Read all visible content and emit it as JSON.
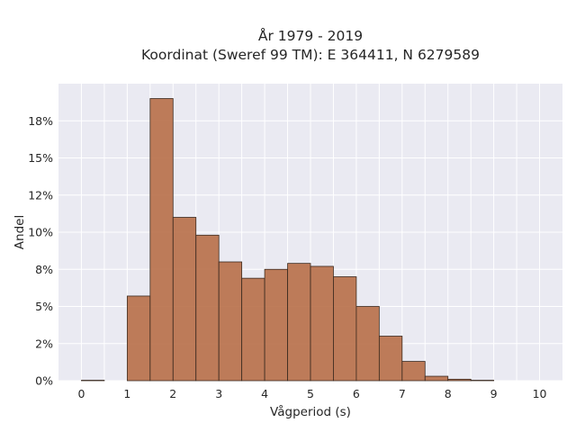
{
  "chart_data": {
    "type": "bar",
    "title_lines": [
      "År 1979 - 2019",
      "Koordinat (Sweref 99 TM): E 364411, N 6279589"
    ],
    "xlabel": "Vågperiod (s)",
    "ylabel": "Andel",
    "xlim": [
      -0.5,
      10.5
    ],
    "ylim": [
      0,
      20
    ],
    "x_ticks": [
      0,
      1,
      2,
      3,
      4,
      5,
      6,
      7,
      8,
      9,
      10
    ],
    "x_tick_labels": [
      "0",
      "1",
      "2",
      "3",
      "4",
      "5",
      "6",
      "7",
      "8",
      "9",
      "10"
    ],
    "y_ticks": [
      0,
      2.5,
      5,
      7.5,
      10,
      12.5,
      15,
      17.5
    ],
    "y_tick_labels": [
      "0%",
      "2%",
      "5%",
      "8%",
      "10%",
      "12%",
      "15%",
      "18%"
    ],
    "bin_edges": [
      0,
      0.5,
      1,
      1.5,
      2,
      2.5,
      3,
      3.5,
      4,
      4.5,
      5,
      5.5,
      6,
      6.5,
      7,
      7.5,
      8,
      8.5,
      9,
      9.5,
      10
    ],
    "values": [
      0.03,
      0,
      5.7,
      19.0,
      11.0,
      9.8,
      8.0,
      6.9,
      7.5,
      7.9,
      7.7,
      7.0,
      5.0,
      3.0,
      1.3,
      0.3,
      0.1,
      0.03,
      0,
      0
    ],
    "grid": true,
    "colors": {
      "background": "#eaeaf2",
      "bar": "#b86f48",
      "bar_edge": "#3a2a20",
      "grid": "#ffffff"
    }
  }
}
